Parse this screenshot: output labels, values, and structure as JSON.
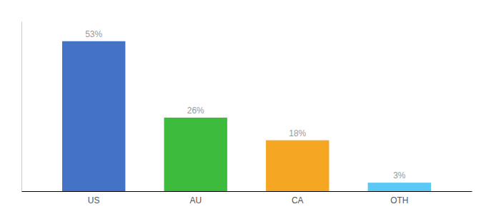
{
  "chart_data": {
    "type": "bar",
    "categories": [
      "US",
      "AU",
      "CA",
      "OTH"
    ],
    "values": [
      53,
      26,
      18,
      3
    ],
    "value_labels": [
      "53%",
      "26%",
      "18%",
      "3%"
    ],
    "colors": [
      "#4472c4",
      "#3dbb3d",
      "#f5a623",
      "#5bc8f5"
    ],
    "ylim": [
      0,
      60
    ],
    "data_labels": true,
    "tick_labels": "x"
  }
}
